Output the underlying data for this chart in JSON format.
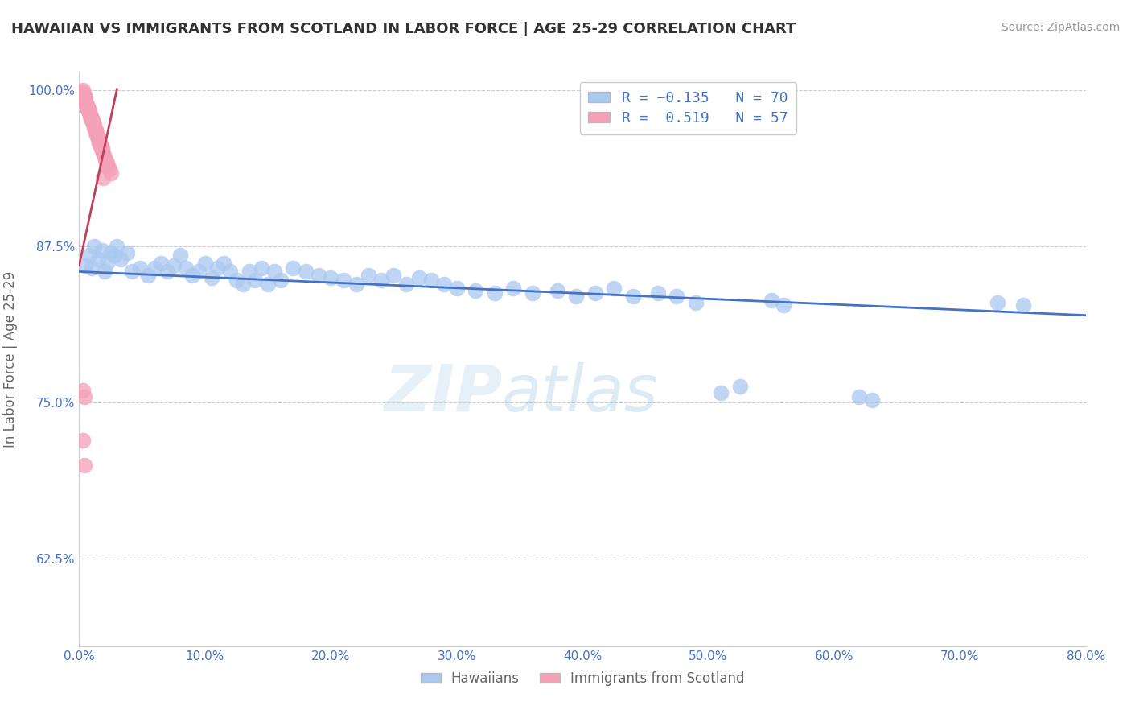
{
  "title": "HAWAIIAN VS IMMIGRANTS FROM SCOTLAND IN LABOR FORCE | AGE 25-29 CORRELATION CHART",
  "source_text": "Source: ZipAtlas.com",
  "ylabel": "In Labor Force | Age 25-29",
  "xlim": [
    0.0,
    0.8
  ],
  "ylim": [
    0.555,
    1.015
  ],
  "xticks": [
    0.0,
    0.1,
    0.2,
    0.3,
    0.4,
    0.5,
    0.6,
    0.7,
    0.8
  ],
  "xticklabels": [
    "0.0%",
    "10.0%",
    "20.0%",
    "30.0%",
    "40.0%",
    "50.0%",
    "60.0%",
    "70.0%",
    "80.0%"
  ],
  "yticks": [
    0.625,
    0.75,
    0.875,
    1.0
  ],
  "yticklabels": [
    "62.5%",
    "75.0%",
    "87.5%",
    "100.0%"
  ],
  "bottom_legend": [
    "Hawaiians",
    "Immigrants from Scotland"
  ],
  "blue_scatter_color": "#aac8f0",
  "pink_scatter_color": "#f4a0b8",
  "blue_line_color": "#4472c4",
  "pink_line_color": "#c0405a",
  "blue_line_x": [
    0.0,
    0.8
  ],
  "blue_line_y": [
    0.855,
    0.82
  ],
  "pink_line_x": [
    0.0,
    0.03
  ],
  "pink_line_y": [
    0.86,
    1.001
  ],
  "watermark": "ZIPatlas",
  "title_color": "#333333",
  "axis_color": "#4472c4",
  "grid_color": "#cccccc",
  "background_color": "#ffffff",
  "hawaiians_x": [
    0.005,
    0.008,
    0.01,
    0.012,
    0.015,
    0.018,
    0.02,
    0.022,
    0.025,
    0.028,
    0.03,
    0.033,
    0.038,
    0.042,
    0.048,
    0.055,
    0.06,
    0.065,
    0.07,
    0.075,
    0.08,
    0.085,
    0.09,
    0.095,
    0.1,
    0.105,
    0.11,
    0.115,
    0.12,
    0.125,
    0.13,
    0.135,
    0.14,
    0.145,
    0.15,
    0.155,
    0.16,
    0.17,
    0.18,
    0.19,
    0.2,
    0.21,
    0.22,
    0.23,
    0.24,
    0.25,
    0.26,
    0.27,
    0.28,
    0.29,
    0.3,
    0.315,
    0.33,
    0.345,
    0.36,
    0.38,
    0.395,
    0.41,
    0.425,
    0.44,
    0.46,
    0.475,
    0.49,
    0.51,
    0.525,
    0.55,
    0.56,
    0.62,
    0.63,
    0.73,
    0.75
  ],
  "hawaiians_y": [
    0.86,
    0.868,
    0.858,
    0.875,
    0.865,
    0.872,
    0.855,
    0.862,
    0.87,
    0.868,
    0.875,
    0.865,
    0.87,
    0.855,
    0.858,
    0.852,
    0.858,
    0.862,
    0.855,
    0.86,
    0.868,
    0.858,
    0.852,
    0.855,
    0.862,
    0.85,
    0.858,
    0.862,
    0.855,
    0.848,
    0.845,
    0.855,
    0.848,
    0.858,
    0.845,
    0.855,
    0.848,
    0.858,
    0.855,
    0.852,
    0.85,
    0.848,
    0.845,
    0.852,
    0.848,
    0.852,
    0.845,
    0.85,
    0.848,
    0.845,
    0.842,
    0.84,
    0.838,
    0.842,
    0.838,
    0.84,
    0.835,
    0.838,
    0.842,
    0.835,
    0.838,
    0.835,
    0.83,
    0.758,
    0.763,
    0.832,
    0.828,
    0.755,
    0.752,
    0.83,
    0.828
  ],
  "scotland_x": [
    0.003,
    0.004,
    0.005,
    0.006,
    0.007,
    0.008,
    0.009,
    0.01,
    0.011,
    0.012,
    0.013,
    0.014,
    0.015,
    0.016,
    0.017,
    0.018,
    0.019,
    0.02,
    0.021,
    0.022,
    0.023,
    0.024,
    0.025,
    0.004,
    0.005,
    0.006,
    0.007,
    0.008,
    0.009,
    0.01,
    0.011,
    0.012,
    0.013,
    0.014,
    0.015,
    0.016,
    0.017,
    0.018,
    0.003,
    0.004,
    0.005,
    0.006,
    0.007,
    0.003,
    0.004,
    0.005,
    0.003,
    0.004,
    0.003,
    0.004,
    0.003,
    0.019,
    0.003,
    0.004,
    0.003,
    0.004
  ],
  "scotland_y": [
    0.995,
    0.992,
    0.99,
    0.987,
    0.985,
    0.982,
    0.979,
    0.976,
    0.973,
    0.97,
    0.967,
    0.964,
    0.961,
    0.958,
    0.955,
    0.952,
    0.95,
    0.947,
    0.944,
    0.942,
    0.939,
    0.937,
    0.934,
    0.995,
    0.992,
    0.989,
    0.987,
    0.984,
    0.981,
    0.978,
    0.975,
    0.972,
    0.969,
    0.966,
    0.963,
    0.96,
    0.957,
    0.954,
    0.996,
    0.993,
    0.99,
    0.988,
    0.985,
    0.997,
    0.994,
    0.991,
    0.998,
    0.995,
    0.999,
    0.996,
    1.0,
    0.93,
    0.76,
    0.755,
    0.72,
    0.7
  ]
}
